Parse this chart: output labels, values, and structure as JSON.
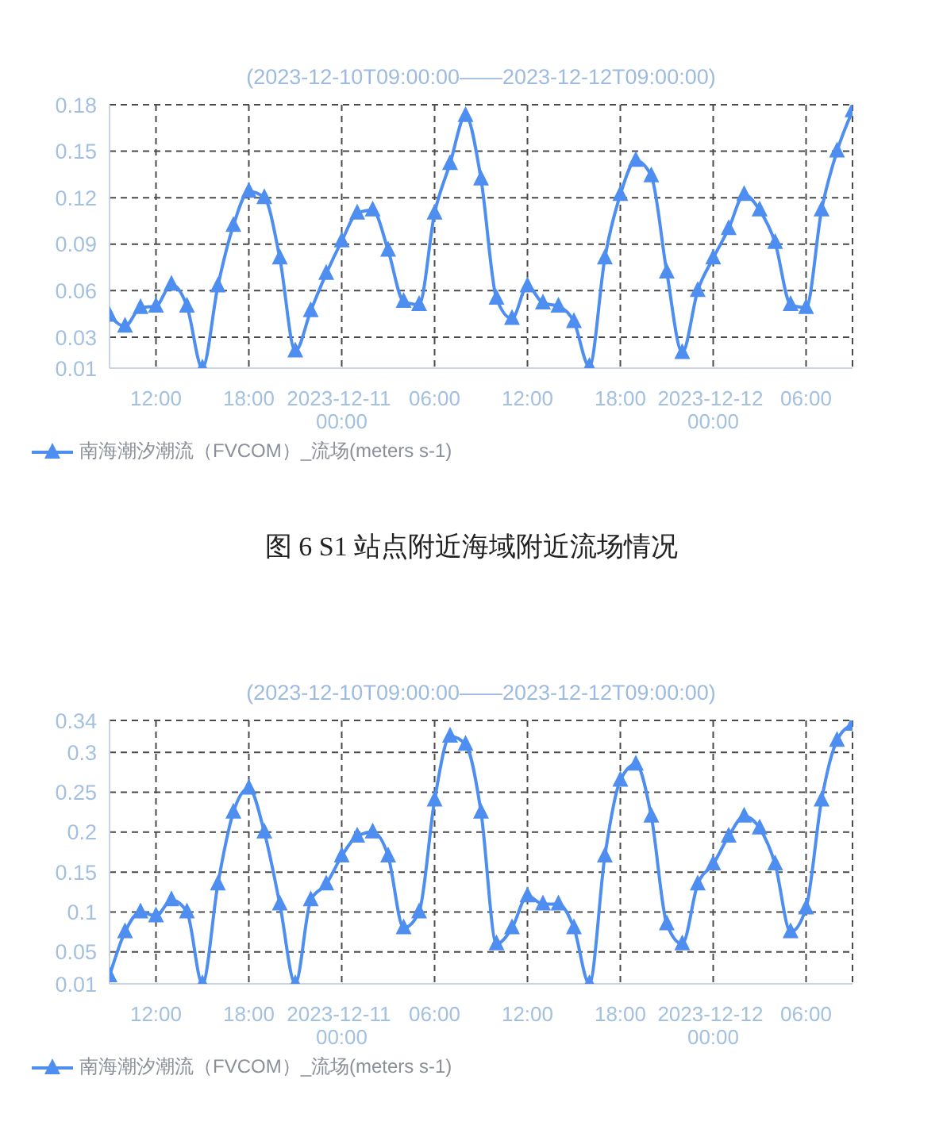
{
  "chart_data": [
    {
      "type": "line",
      "subtitle": "(2023-12-10T09:00:00——2023-12-12T09:00:00)",
      "x": [
        "2023-12-10T09:00",
        "2023-12-10T10:00",
        "2023-12-10T11:00",
        "2023-12-10T12:00",
        "2023-12-10T13:00",
        "2023-12-10T14:00",
        "2023-12-10T15:00",
        "2023-12-10T16:00",
        "2023-12-10T17:00",
        "2023-12-10T18:00",
        "2023-12-10T19:00",
        "2023-12-10T20:00",
        "2023-12-10T21:00",
        "2023-12-10T22:00",
        "2023-12-10T23:00",
        "2023-12-11T00:00",
        "2023-12-11T01:00",
        "2023-12-11T02:00",
        "2023-12-11T03:00",
        "2023-12-11T04:00",
        "2023-12-11T05:00",
        "2023-12-11T06:00",
        "2023-12-11T07:00",
        "2023-12-11T08:00",
        "2023-12-11T09:00",
        "2023-12-11T10:00",
        "2023-12-11T11:00",
        "2023-12-11T12:00",
        "2023-12-11T13:00",
        "2023-12-11T14:00",
        "2023-12-11T15:00",
        "2023-12-11T16:00",
        "2023-12-11T17:00",
        "2023-12-11T18:00",
        "2023-12-11T19:00",
        "2023-12-11T20:00",
        "2023-12-11T21:00",
        "2023-12-11T22:00",
        "2023-12-11T23:00",
        "2023-12-12T00:00",
        "2023-12-12T01:00",
        "2023-12-12T02:00",
        "2023-12-12T03:00",
        "2023-12-12T04:00",
        "2023-12-12T05:00",
        "2023-12-12T06:00",
        "2023-12-12T07:00",
        "2023-12-12T08:00",
        "2023-12-12T09:00"
      ],
      "series": [
        {
          "name": "南海潮汐潮流（FVCOM）_流场(meters s-1)",
          "color": "#4d8ef0",
          "values": [
            0.044,
            0.037,
            0.049,
            0.05,
            0.064,
            0.05,
            0.01,
            0.063,
            0.102,
            0.124,
            0.12,
            0.081,
            0.021,
            0.047,
            0.071,
            0.092,
            0.11,
            0.112,
            0.086,
            0.053,
            0.051,
            0.11,
            0.142,
            0.173,
            0.132,
            0.055,
            0.042,
            0.063,
            0.052,
            0.05,
            0.04,
            0.011,
            0.081,
            0.122,
            0.144,
            0.134,
            0.072,
            0.02,
            0.06,
            0.081,
            0.1,
            0.122,
            0.112,
            0.091,
            0.051,
            0.049,
            0.112,
            0.15,
            0.176
          ]
        }
      ],
      "xlim": [
        "2023-12-10T09:00",
        "2023-12-12T09:00"
      ],
      "xticks": [
        {
          "value": "2023-12-10T12:00",
          "label": "12:00"
        },
        {
          "value": "2023-12-10T18:00",
          "label": "18:00"
        },
        {
          "value": "2023-12-11T00:00",
          "label": "2023-12-11 00:00"
        },
        {
          "value": "2023-12-11T06:00",
          "label": "06:00"
        },
        {
          "value": "2023-12-11T12:00",
          "label": "12:00"
        },
        {
          "value": "2023-12-11T18:00",
          "label": "18:00"
        },
        {
          "value": "2023-12-12T00:00",
          "label": "2023-12-12 00:00"
        },
        {
          "value": "2023-12-12T06:00",
          "label": "06:00"
        }
      ],
      "ylim": [
        0.01,
        0.18
      ],
      "yticks": [
        0.01,
        0.03,
        0.06,
        0.09,
        0.12,
        0.15,
        0.18
      ],
      "grid": true,
      "legend": "bottom left",
      "marker": "triangle",
      "annotations": [
        "图 6 S1 站点附近海域附近流场情况"
      ]
    },
    {
      "type": "line",
      "subtitle": "(2023-12-10T09:00:00——2023-12-12T09:00:00)",
      "x": [
        "2023-12-10T09:00",
        "2023-12-10T10:00",
        "2023-12-10T11:00",
        "2023-12-10T12:00",
        "2023-12-10T13:00",
        "2023-12-10T14:00",
        "2023-12-10T15:00",
        "2023-12-10T16:00",
        "2023-12-10T17:00",
        "2023-12-10T18:00",
        "2023-12-10T19:00",
        "2023-12-10T20:00",
        "2023-12-10T21:00",
        "2023-12-10T22:00",
        "2023-12-10T23:00",
        "2023-12-11T00:00",
        "2023-12-11T01:00",
        "2023-12-11T02:00",
        "2023-12-11T03:00",
        "2023-12-11T04:00",
        "2023-12-11T05:00",
        "2023-12-11T06:00",
        "2023-12-11T07:00",
        "2023-12-11T08:00",
        "2023-12-11T09:00",
        "2023-12-11T10:00",
        "2023-12-11T11:00",
        "2023-12-11T12:00",
        "2023-12-11T13:00",
        "2023-12-11T14:00",
        "2023-12-11T15:00",
        "2023-12-11T16:00",
        "2023-12-11T17:00",
        "2023-12-11T18:00",
        "2023-12-11T19:00",
        "2023-12-11T20:00",
        "2023-12-11T21:00",
        "2023-12-11T22:00",
        "2023-12-11T23:00",
        "2023-12-12T00:00",
        "2023-12-12T01:00",
        "2023-12-12T02:00",
        "2023-12-12T03:00",
        "2023-12-12T04:00",
        "2023-12-12T05:00",
        "2023-12-12T06:00",
        "2023-12-12T07:00",
        "2023-12-12T08:00",
        "2023-12-12T09:00"
      ],
      "series": [
        {
          "name": "南海潮汐潮流（FVCOM）_流场(meters s-1)",
          "color": "#4d8ef0",
          "values": [
            0.02,
            0.075,
            0.1,
            0.095,
            0.115,
            0.1,
            0.01,
            0.135,
            0.225,
            0.255,
            0.2,
            0.11,
            0.01,
            0.115,
            0.135,
            0.17,
            0.195,
            0.2,
            0.17,
            0.08,
            0.1,
            0.24,
            0.32,
            0.31,
            0.225,
            0.06,
            0.08,
            0.12,
            0.11,
            0.11,
            0.08,
            0.01,
            0.17,
            0.265,
            0.285,
            0.22,
            0.085,
            0.06,
            0.135,
            0.16,
            0.195,
            0.22,
            0.205,
            0.16,
            0.075,
            0.105,
            0.24,
            0.315,
            0.335
          ]
        }
      ],
      "xlim": [
        "2023-12-10T09:00",
        "2023-12-12T09:00"
      ],
      "xticks": [
        {
          "value": "2023-12-10T12:00",
          "label": "12:00"
        },
        {
          "value": "2023-12-10T18:00",
          "label": "18:00"
        },
        {
          "value": "2023-12-11T00:00",
          "label": "2023-12-11 00:00"
        },
        {
          "value": "2023-12-11T06:00",
          "label": "06:00"
        },
        {
          "value": "2023-12-11T12:00",
          "label": "12:00"
        },
        {
          "value": "2023-12-11T18:00",
          "label": "18:00"
        },
        {
          "value": "2023-12-12T00:00",
          "label": "2023-12-12 00:00"
        },
        {
          "value": "2023-12-12T06:00",
          "label": "06:00"
        }
      ],
      "ylim": [
        0.01,
        0.34
      ],
      "yticks": [
        0.01,
        0.05,
        0.1,
        0.15,
        0.2,
        0.25,
        0.3,
        0.34
      ],
      "grid": true,
      "legend": "bottom left",
      "marker": "triangle"
    }
  ]
}
